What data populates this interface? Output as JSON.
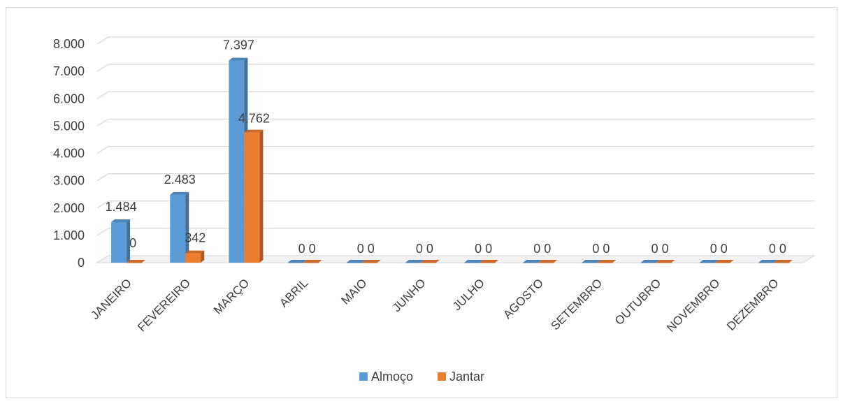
{
  "chart_data": {
    "type": "bar",
    "categories": [
      "JANEIRO",
      "FEVEREIRO",
      "MARÇO",
      "ABRIL",
      "MAIO",
      "JUNHO",
      "JULHO",
      "AGOSTO",
      "SETEMBRO",
      "OUTUBRO",
      "NOVEMBRO",
      "DEZEMBRO"
    ],
    "series": [
      {
        "name": "Almoço",
        "values": [
          1484,
          2483,
          7397,
          0,
          0,
          0,
          0,
          0,
          0,
          0,
          0,
          0
        ],
        "labels": [
          "1.484",
          "2.483",
          "7.397",
          "0",
          "0",
          "0",
          "0",
          "0",
          "0",
          "0",
          "0",
          "0"
        ],
        "color": "#5b9bd5"
      },
      {
        "name": "Jantar",
        "values": [
          0,
          342,
          4762,
          0,
          0,
          0,
          0,
          0,
          0,
          0,
          0,
          0
        ],
        "labels": [
          "0",
          "342",
          "4.762",
          "0",
          "0",
          "0",
          "0",
          "0",
          "0",
          "0",
          "0",
          "0"
        ],
        "color": "#ed7d31"
      }
    ],
    "y_ticks": [
      "0",
      "1.000",
      "2.000",
      "3.000",
      "4.000",
      "5.000",
      "6.000",
      "7.000",
      "8.000"
    ],
    "ylim": [
      0,
      8000
    ],
    "grid": true,
    "legend_position": "bottom",
    "style": "3d-column"
  }
}
